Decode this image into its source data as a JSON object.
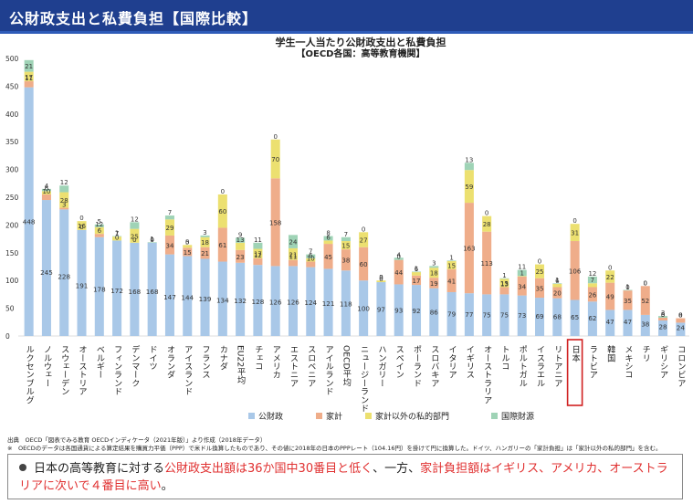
{
  "header": {
    "title": "公財政支出と私費負担【国際比較】"
  },
  "colors": {
    "public": "#a9c8e8",
    "household": "#efad8a",
    "other_private": "#ece070",
    "intl": "#9fd3b6",
    "highlight_box": "#d02020"
  },
  "chart_data": {
    "type": "bar",
    "stacked": true,
    "title": "学生一人当たり公財政支出と私費負担",
    "subtitle": "【OECD各国：高等教育機関】",
    "ylim": [
      0,
      500
    ],
    "yticks": [
      "0",
      "50",
      "100",
      "150",
      "200",
      "250",
      "300",
      "350",
      "400",
      "450",
      "500"
    ],
    "grid": false,
    "legend_position": "bottom",
    "highlight_category": "日本",
    "categories": [
      "ルクセンブルグ",
      "ノルウェー",
      "スウェーデン",
      "オーストリア",
      "ベルギー",
      "フィンランド",
      "デンマーク",
      "ドイツ",
      "オランダ",
      "アイスランド",
      "フランス",
      "カナダ",
      "EU22平均",
      "チェコ",
      "アメリカ",
      "エストニア",
      "スロベニア",
      "アイルランド",
      "OECD平均",
      "ニュージーランド",
      "ハンガリー",
      "スペイン",
      "ポーランド",
      "スロバキア",
      "イタリア",
      "イギリス",
      "オーストラリア",
      "トルコ",
      "ポルトガル",
      "イスラエル",
      "リトアニア",
      "日本",
      "ラトビア",
      "韓国",
      "メキシコ",
      "チリ",
      "ギリシア",
      "コロンビア"
    ],
    "series": [
      {
        "name": "公財政",
        "values": [
          448,
          245,
          228,
          191,
          178,
          172,
          168,
          168,
          147,
          144,
          139,
          134,
          132,
          128,
          126,
          126,
          124,
          121,
          118,
          100,
          97,
          93,
          92,
          86,
          79,
          77,
          75,
          75,
          73,
          69,
          68,
          65,
          62,
          47,
          47,
          38,
          28,
          24
        ]
      },
      {
        "name": "家計",
        "values": [
          11,
          10,
          3,
          0,
          6,
          0,
          0,
          0,
          34,
          15,
          21,
          61,
          23,
          12,
          158,
          11,
          10,
          45,
          38,
          60,
          0,
          44,
          17,
          19,
          41,
          163,
          113,
          13,
          34,
          35,
          20,
          106,
          26,
          49,
          35,
          52,
          5,
          8
        ]
      },
      {
        "name": "家計以外の私的部門",
        "values": [
          17,
          6,
          28,
          16,
          12,
          7,
          25,
          0,
          29,
          5,
          18,
          60,
          13,
          17,
          70,
          21,
          6,
          6,
          15,
          27,
          3,
          0,
          6,
          18,
          15,
          59,
          28,
          15,
          1,
          25,
          6,
          31,
          7,
          22,
          0,
          0,
          0,
          0
        ]
      },
      {
        "name": "国際財源",
        "values": [
          21,
          4,
          12,
          0,
          5,
          1,
          12,
          1,
          7,
          0,
          3,
          0,
          9,
          11,
          0,
          24,
          7,
          8,
          7,
          0,
          0,
          4,
          1,
          3,
          1,
          13,
          0,
          1,
          11,
          0,
          1,
          0,
          12,
          0,
          1,
          0,
          3,
          0
        ]
      }
    ],
    "label_order": [
      [
        "448",
        "11",
        "17",
        "21"
      ],
      [
        "245",
        "10",
        "6",
        "4"
      ],
      [
        "228",
        "3",
        "28",
        "12"
      ],
      [
        "191",
        "0",
        "16",
        "0"
      ],
      [
        "178",
        "6",
        "12",
        "5"
      ],
      [
        "172",
        "0",
        "7",
        "1"
      ],
      [
        "168",
        "0",
        "25",
        "12"
      ],
      [
        "168",
        "0",
        "0",
        "1"
      ],
      [
        "147",
        "34",
        "29",
        "7"
      ],
      [
        "144",
        "15",
        "5",
        "0"
      ],
      [
        "139",
        "21",
        "18",
        "3"
      ],
      [
        "134",
        "61",
        "60",
        "0"
      ],
      [
        "132",
        "23",
        "13",
        "9"
      ],
      [
        "128",
        "12",
        "17",
        "11"
      ],
      [
        "126",
        "158",
        "70",
        "0"
      ],
      [
        "126",
        "11",
        "21",
        "24"
      ],
      [
        "124",
        "10",
        "6",
        "7"
      ],
      [
        "121",
        "45",
        "6",
        "8"
      ],
      [
        "118",
        "38",
        "15",
        "7"
      ],
      [
        "100",
        "60",
        "27",
        "0"
      ],
      [
        "97",
        "0",
        "3",
        "0"
      ],
      [
        "93",
        "44",
        "0",
        "4"
      ],
      [
        "92",
        "17",
        "6",
        "1"
      ],
      [
        "86",
        "19",
        "18",
        "3"
      ],
      [
        "79",
        "41",
        "15",
        "1"
      ],
      [
        "77",
        "163",
        "59",
        "13"
      ],
      [
        "75",
        "113",
        "28",
        "0"
      ],
      [
        "75",
        "13",
        "15",
        "1"
      ],
      [
        "73",
        "34",
        "1",
        "11"
      ],
      [
        "69",
        "35",
        "25",
        "0"
      ],
      [
        "68",
        "20",
        "6",
        "1"
      ],
      [
        "65",
        "106",
        "31",
        "0"
      ],
      [
        "62",
        "26",
        "7",
        "12"
      ],
      [
        "47",
        "49",
        "22",
        "0"
      ],
      [
        "47",
        "35",
        "0",
        "1"
      ],
      [
        "38",
        "52",
        "0",
        "0"
      ],
      [
        "28",
        "5",
        "0",
        "3"
      ],
      [
        "24",
        "8",
        "0",
        "0"
      ]
    ]
  },
  "source": "出典　OECD「図表でみる教育 OECDインディケータ（2021年版）」より作成（2018年データ）",
  "source_note": "※　OECDのデータは各国通貨による算定結果を購買力平価（PPP）で米ドル換算したものであり、その値に2018年の日本のPPPレート（104.16円）を掛けて円に換算した。ドイツ、ハンガリーの「家計負担」は「家計以外の私的部門」を含む。",
  "note": {
    "part1": "日本の高等教育に対する",
    "part2": "公財政支出額は36か国中30番目と低く",
    "part3": "、一方、",
    "part4": "家計負担額はイギリス、アメリカ、オーストラリアに次いで４番目に高い",
    "part5": "。"
  }
}
